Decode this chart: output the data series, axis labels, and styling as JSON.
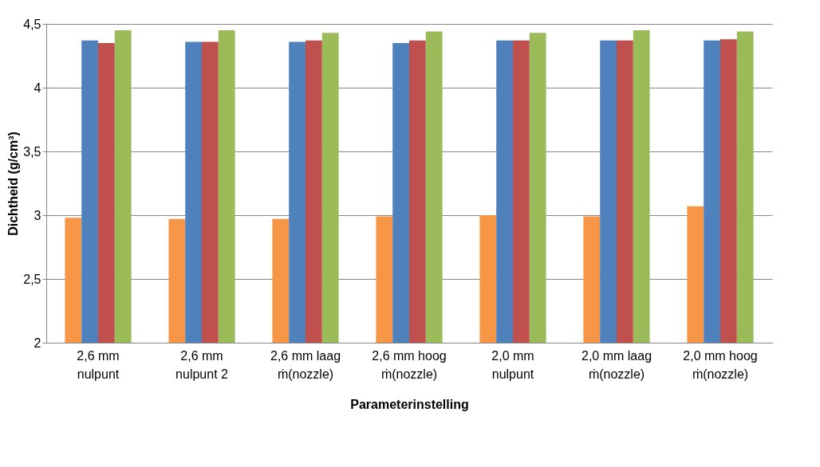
{
  "chart_data": {
    "type": "bar",
    "xlabel": "Parameterinstelling",
    "ylabel": "Dichtheid (g/cm³)",
    "categories": [
      "2,6 mm nulpunt",
      "2,6 mm nulpunt 2",
      "2,6 mm laag ṁ(nozzle)",
      "2,6 mm hoog ṁ(nozzle)",
      "2,0 mm nulpunt",
      "2,0 mm laag ṁ(nozzle)",
      "2,0 mm hoog ṁ(nozzle)"
    ],
    "series": [
      {
        "color": "#f79646",
        "values": [
          2.98,
          2.97,
          2.97,
          2.99,
          3.0,
          2.99,
          3.07
        ]
      },
      {
        "color": "#4f81bd",
        "values": [
          4.37,
          4.36,
          4.36,
          4.35,
          4.37,
          4.37,
          4.37
        ]
      },
      {
        "color": "#c0504d",
        "values": [
          4.35,
          4.36,
          4.37,
          4.37,
          4.37,
          4.37,
          4.38
        ]
      },
      {
        "color": "#9bbb59",
        "values": [
          4.45,
          4.45,
          4.43,
          4.44,
          4.43,
          4.45,
          4.44
        ]
      }
    ],
    "ylim": [
      2,
      4.5
    ],
    "yticks": [
      2,
      {
        "value": 2.5,
        "label": "2,5"
      },
      3,
      {
        "value": 3.5,
        "label": "3,5"
      },
      4,
      {
        "value": 4.5,
        "label": "4,5"
      }
    ],
    "grid": "y",
    "legend": false
  }
}
